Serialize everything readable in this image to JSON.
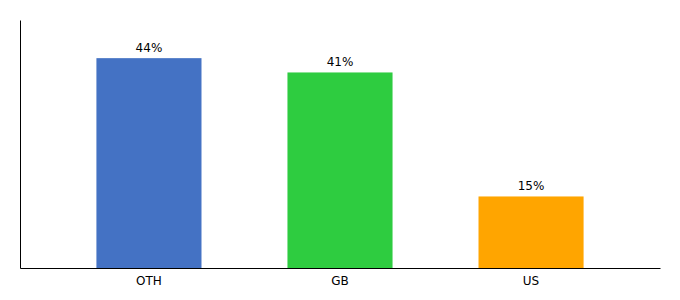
{
  "chart_data": {
    "type": "bar",
    "categories": [
      "OTH",
      "GB",
      "US"
    ],
    "values": [
      44,
      41,
      15
    ],
    "value_labels": [
      "44%",
      "41%",
      "15%"
    ],
    "colors": [
      "#4472C4",
      "#2ECC40",
      "#FFA500"
    ],
    "ylim": [
      0,
      52
    ],
    "data_labels": true,
    "tick_labels": "x"
  }
}
